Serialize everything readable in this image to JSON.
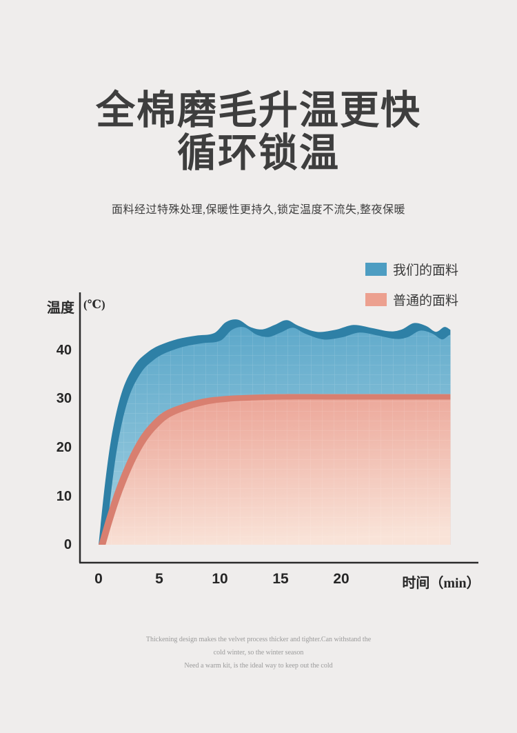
{
  "page": {
    "background": "#efedec",
    "title_line1": "全棉磨毛升温更快",
    "title_line2": "循环锁温",
    "subtitle": "面料经过特殊处理,保暖性更持久,锁定温度不流失,整夜保暖",
    "footer_lines": [
      "Thickening design makes the velvet process thicker and tighter.Can withstand the",
      "cold winter, so the winter season",
      "Need a warm kit, is the ideal way to keep out the cold"
    ]
  },
  "legend": {
    "items": [
      {
        "label": "我们的面料",
        "color": "#4d9dc2"
      },
      {
        "label": "普通的面料",
        "color": "#eca08f"
      }
    ]
  },
  "chart_data": {
    "type": "area",
    "title": "",
    "xlabel": "时间（min）",
    "ylabel": "温度",
    "ylabel_unit": "(℃)",
    "x_ticks": [
      0,
      5,
      10,
      15,
      20
    ],
    "y_ticks": [
      0,
      10,
      20,
      30,
      40
    ],
    "xlim": [
      0,
      29
    ],
    "ylim": [
      0,
      47
    ],
    "grid": false,
    "legend_position": "top-right",
    "series": [
      {
        "name": "我们的面料",
        "color_edge": "#2e80a6",
        "color_face": "#58a5c8",
        "color_face_light": "#aad5e4",
        "x": [
          0,
          0.6,
          1.2,
          2,
          3,
          4,
          5,
          6.5,
          8,
          9.5,
          10.5,
          11.5,
          12.5,
          13.5,
          14.5,
          15.5,
          16.5,
          18,
          19.5,
          21,
          22.5,
          24,
          25,
          26,
          27,
          27.8,
          28.5,
          29
        ],
        "values": [
          0,
          14,
          24,
          32,
          37,
          39.5,
          41,
          42.3,
          43,
          43.5,
          45.8,
          46.3,
          44.8,
          44.3,
          45.2,
          46.2,
          45,
          43.8,
          44.2,
          45.2,
          44.6,
          43.9,
          44.3,
          45.6,
          45,
          43.8,
          44.8,
          44.2
        ]
      },
      {
        "name": "普通的面料",
        "color_edge": "#d87f70",
        "color_face": "#eba294",
        "color_face_light": "#f9e3d8",
        "x": [
          0,
          0.7,
          1.5,
          2.5,
          3.5,
          4.5,
          5.5,
          7,
          8.5,
          10,
          12,
          15,
          20,
          25,
          29
        ],
        "values": [
          0,
          6,
          12,
          18,
          22.5,
          25.5,
          27.5,
          29,
          30,
          30.5,
          30.8,
          31,
          31,
          31,
          31
        ]
      }
    ]
  }
}
